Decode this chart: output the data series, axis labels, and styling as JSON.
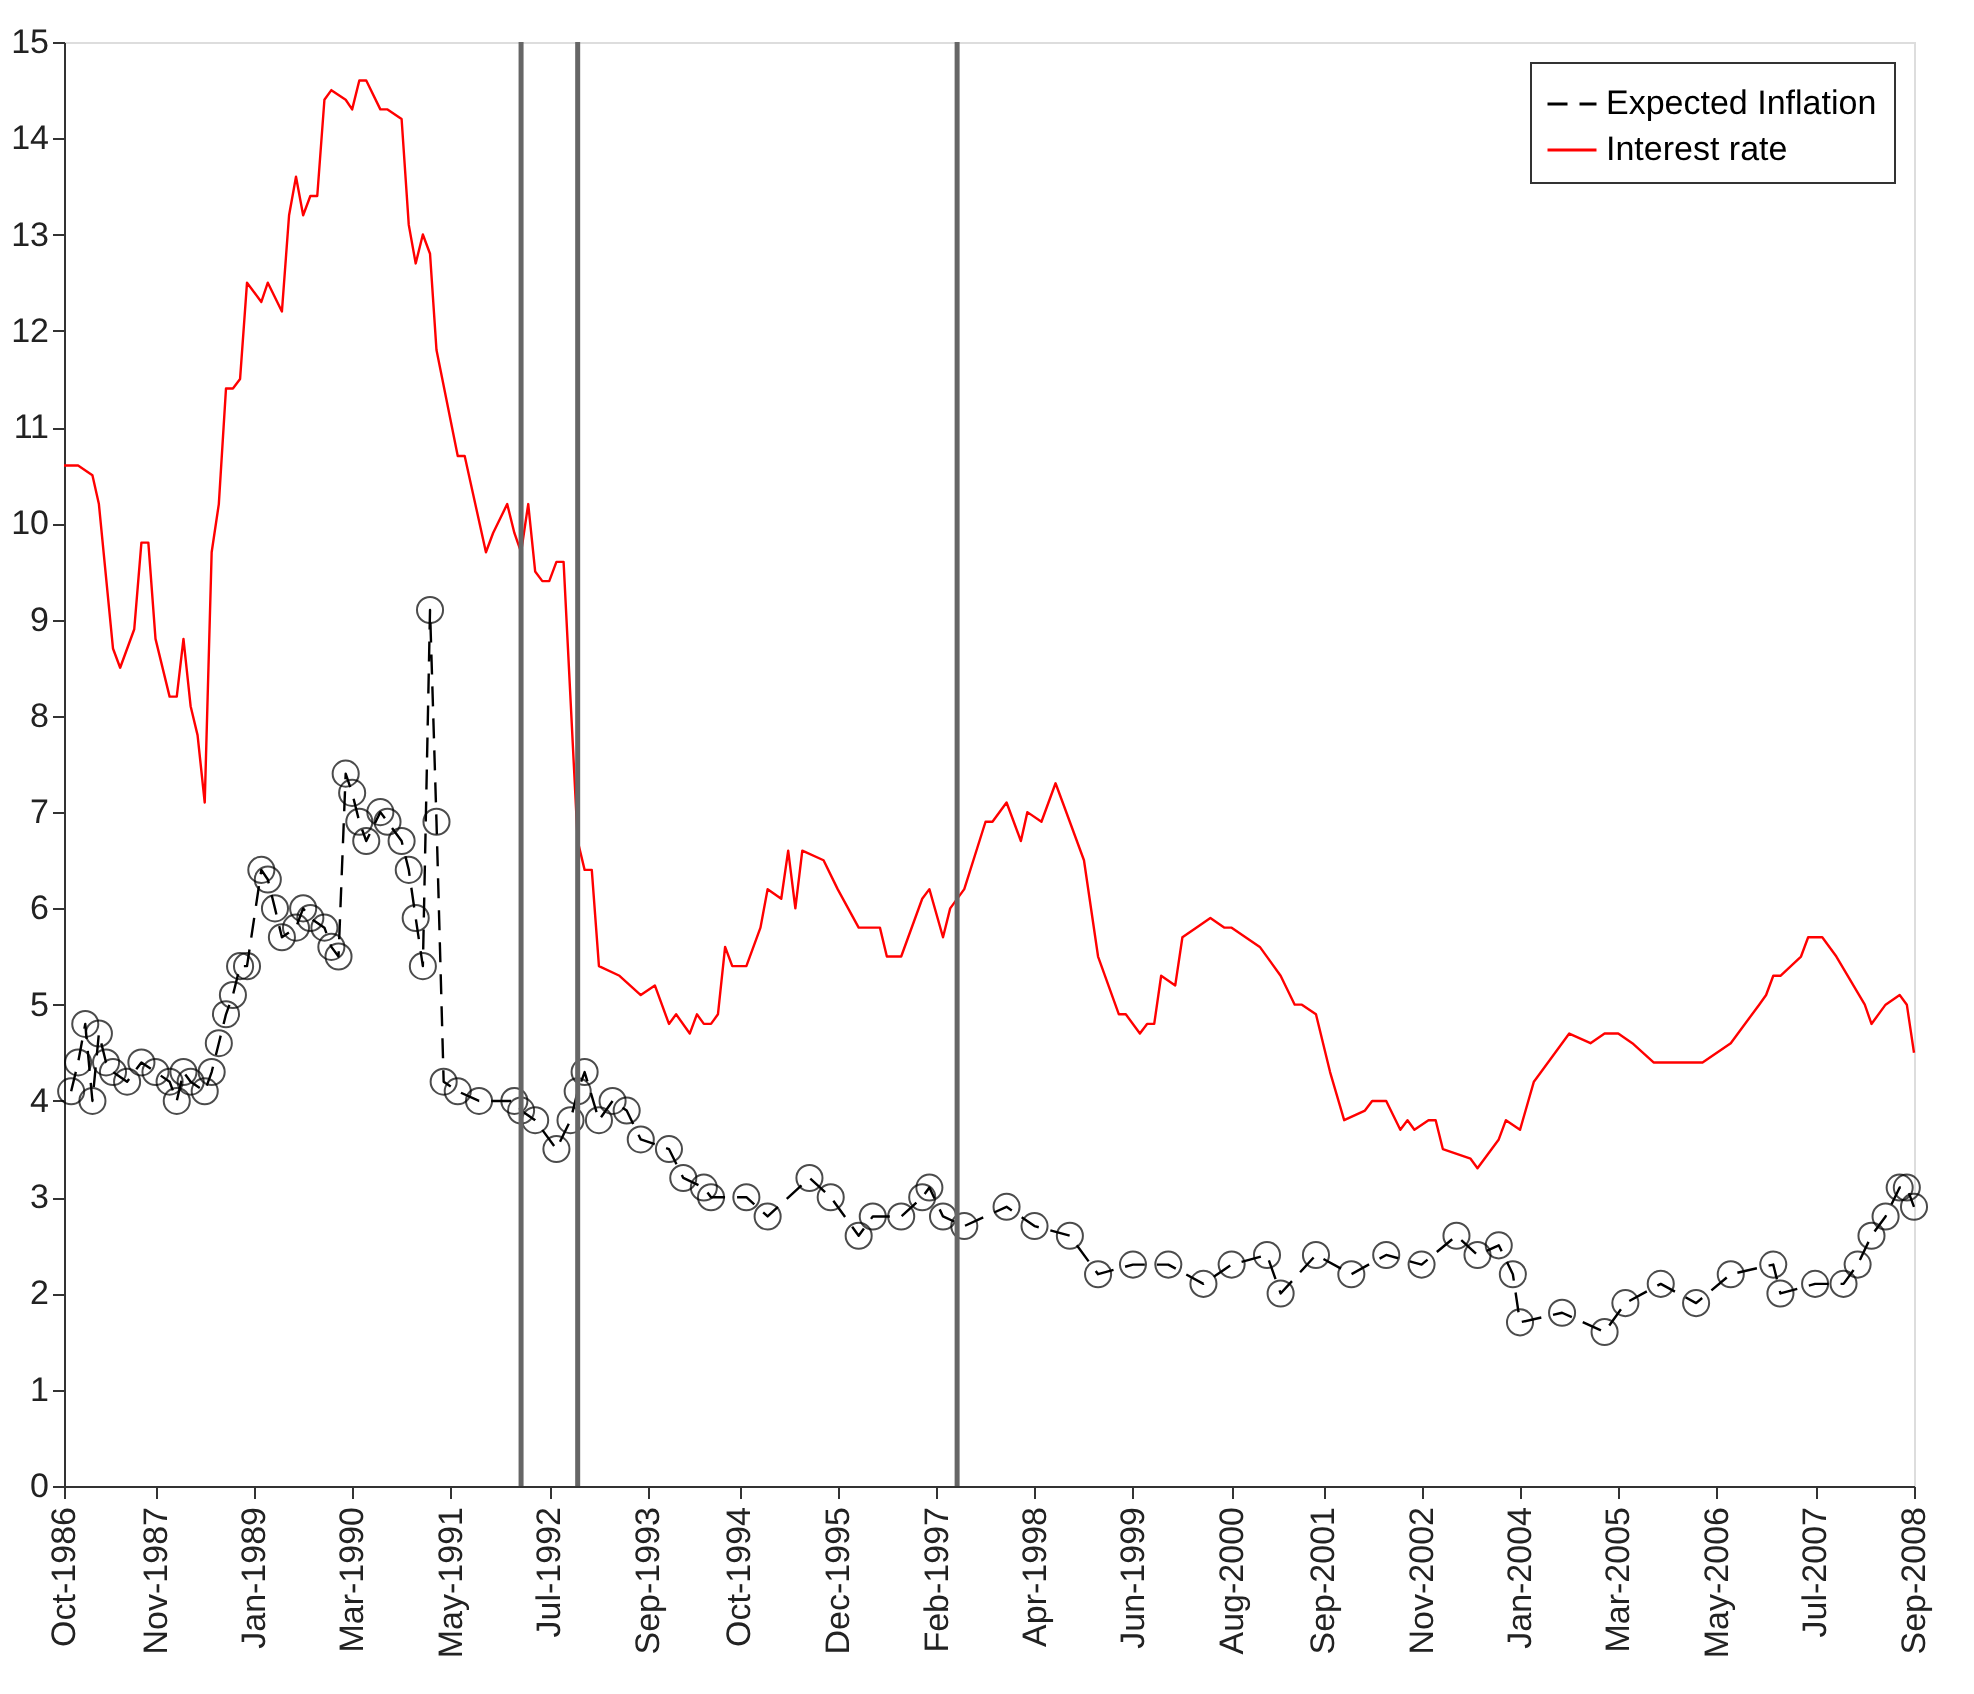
{
  "chart_data": {
    "type": "line",
    "xlim": [
      "1986-10",
      "2008-09"
    ],
    "ylim": [
      0,
      15
    ],
    "yticks": [
      0,
      1,
      2,
      3,
      4,
      5,
      6,
      7,
      8,
      9,
      10,
      11,
      12,
      13,
      14,
      15
    ],
    "xticks": [
      {
        "value": "1986-10",
        "label": "Oct-1986"
      },
      {
        "value": "1987-11",
        "label": "Nov-1987"
      },
      {
        "value": "1989-01",
        "label": "Jan-1989"
      },
      {
        "value": "1990-03",
        "label": "Mar-1990"
      },
      {
        "value": "1991-05",
        "label": "May-1991"
      },
      {
        "value": "1992-07",
        "label": "Jul-1992"
      },
      {
        "value": "1993-09",
        "label": "Sep-1993"
      },
      {
        "value": "1994-10",
        "label": "Oct-1994"
      },
      {
        "value": "1995-12",
        "label": "Dec-1995"
      },
      {
        "value": "1997-02",
        "label": "Feb-1997"
      },
      {
        "value": "1998-04",
        "label": "Apr-1998"
      },
      {
        "value": "1999-06",
        "label": "Jun-1999"
      },
      {
        "value": "2000-08",
        "label": "Aug-2000"
      },
      {
        "value": "2001-09",
        "label": "Sep-2001"
      },
      {
        "value": "2002-11",
        "label": "Nov-2002"
      },
      {
        "value": "2004-01",
        "label": "Jan-2004"
      },
      {
        "value": "2005-03",
        "label": "Mar-2005"
      },
      {
        "value": "2006-05",
        "label": "May-2006"
      },
      {
        "value": "2007-07",
        "label": "Jul-2007"
      },
      {
        "value": "2008-09",
        "label": "Sep-2008"
      }
    ],
    "grid": false,
    "legend": "top right",
    "ref_lines": [
      {
        "axis": "x",
        "value": "1992-03",
        "color": "#666666"
      },
      {
        "axis": "x",
        "value": "1992-11",
        "color": "#666666"
      },
      {
        "axis": "x",
        "value": "1997-05",
        "color": "#666666"
      }
    ],
    "series": [
      {
        "name": "Expected Inflation",
        "color": "#000000",
        "marker": "circle",
        "line_style": "dashed",
        "x": [
          "1986-11",
          "1986-12",
          "1987-01",
          "1987-02",
          "1987-03",
          "1987-04",
          "1987-05",
          "1987-07",
          "1987-09",
          "1987-11",
          "1988-01",
          "1988-02",
          "1988-03",
          "1988-04",
          "1988-06",
          "1988-07",
          "1988-08",
          "1988-09",
          "1988-10",
          "1988-11",
          "1988-12",
          "1989-02",
          "1989-03",
          "1989-04",
          "1989-05",
          "1989-07",
          "1989-08",
          "1989-09",
          "1989-11",
          "1989-12",
          "1990-01",
          "1990-02",
          "1990-03",
          "1990-04",
          "1990-05",
          "1990-07",
          "1990-08",
          "1990-10",
          "1990-11",
          "1990-12",
          "1991-01",
          "1991-02",
          "1991-03",
          "1991-04",
          "1991-06",
          "1991-09",
          "1992-02",
          "1992-03",
          "1992-05",
          "1992-08",
          "1992-10",
          "1992-11",
          "1992-12",
          "1993-02",
          "1993-04",
          "1993-06",
          "1993-08",
          "1993-12",
          "1994-02",
          "1994-05",
          "1994-06",
          "1994-11",
          "1995-02",
          "1995-08",
          "1995-11",
          "1996-03",
          "1996-05",
          "1996-09",
          "1996-12",
          "1997-01",
          "1997-03",
          "1997-06",
          "1997-12",
          "1998-04",
          "1998-09",
          "1999-01",
          "1999-06",
          "1999-11",
          "2000-04",
          "2000-08",
          "2001-01",
          "2001-03",
          "2001-08",
          "2002-01",
          "2002-06",
          "2002-11",
          "2003-04",
          "2003-07",
          "2003-10",
          "2003-12",
          "2004-01",
          "2004-07",
          "2005-01",
          "2005-04",
          "2005-09",
          "2006-02",
          "2006-07",
          "2007-01",
          "2007-02",
          "2007-07",
          "2007-11",
          "2008-01",
          "2008-03",
          "2008-05",
          "2008-07",
          "2008-08",
          "2008-09"
        ],
        "values": [
          4.1,
          4.4,
          4.8,
          4.0,
          4.7,
          4.4,
          4.3,
          4.2,
          4.4,
          4.3,
          4.2,
          4.0,
          4.3,
          4.2,
          4.1,
          4.3,
          4.6,
          4.9,
          5.1,
          5.4,
          5.4,
          6.4,
          6.3,
          6.0,
          5.7,
          5.8,
          6.0,
          5.9,
          5.8,
          5.6,
          5.5,
          7.4,
          7.2,
          6.9,
          6.7,
          7.0,
          6.9,
          6.7,
          6.4,
          5.9,
          5.4,
          9.1,
          6.9,
          4.2,
          4.1,
          4.0,
          4.0,
          3.9,
          3.8,
          3.5,
          3.8,
          4.1,
          4.3,
          3.8,
          4.0,
          3.9,
          3.6,
          3.5,
          3.2,
          3.1,
          3.0,
          3.0,
          2.8,
          3.2,
          3.0,
          2.6,
          2.8,
          2.8,
          3.0,
          3.1,
          2.8,
          2.7,
          2.9,
          2.7,
          2.6,
          2.2,
          2.3,
          2.3,
          2.1,
          2.3,
          2.4,
          2.0,
          2.4,
          2.2,
          2.4,
          2.3,
          2.6,
          2.4,
          2.5,
          2.2,
          1.7,
          1.8,
          1.6,
          1.9,
          2.1,
          1.9,
          2.2,
          2.3,
          2.0,
          2.1,
          2.1,
          2.3,
          2.6,
          2.8,
          3.1,
          3.1,
          2.9
        ]
      },
      {
        "name": "Interest rate",
        "color": "#ff0000",
        "marker": "none",
        "line_style": "solid",
        "x": [
          "1986-10",
          "1986-12",
          "1987-02",
          "1987-03",
          "1987-05",
          "1987-06",
          "1987-08",
          "1987-09",
          "1987-10",
          "1987-11",
          "1988-01",
          "1988-02",
          "1988-03",
          "1988-04",
          "1988-05",
          "1988-06",
          "1988-07",
          "1988-08",
          "1988-09",
          "1988-10",
          "1988-11",
          "1988-12",
          "1989-02",
          "1989-03",
          "1989-05",
          "1989-06",
          "1989-07",
          "1989-08",
          "1989-09",
          "1989-10",
          "1989-11",
          "1989-12",
          "1990-02",
          "1990-03",
          "1990-04",
          "1990-05",
          "1990-07",
          "1990-08",
          "1990-10",
          "1990-11",
          "1990-12",
          "1991-01",
          "1991-02",
          "1991-03",
          "1991-06",
          "1991-07",
          "1991-10",
          "1991-11",
          "1992-01",
          "1992-02",
          "1992-03",
          "1992-04",
          "1992-05",
          "1992-06",
          "1992-07",
          "1992-08",
          "1992-09",
          "1992-11",
          "1992-12",
          "1993-01",
          "1993-02",
          "1993-05",
          "1993-08",
          "1993-10",
          "1993-12",
          "1994-01",
          "1994-03",
          "1994-04",
          "1994-05",
          "1994-06",
          "1994-07",
          "1994-08",
          "1994-09",
          "1994-11",
          "1995-01",
          "1995-02",
          "1995-04",
          "1995-05",
          "1995-06",
          "1995-07",
          "1995-10",
          "1995-12",
          "1996-03",
          "1996-06",
          "1996-07",
          "1996-09",
          "1996-12",
          "1997-01",
          "1997-03",
          "1997-04",
          "1997-06",
          "1997-09",
          "1997-10",
          "1997-12",
          "1998-02",
          "1998-03",
          "1998-05",
          "1998-07",
          "1998-08",
          "1998-11",
          "1999-01",
          "1999-04",
          "1999-05",
          "1999-07",
          "1999-08",
          "1999-09",
          "1999-10",
          "1999-12",
          "2000-01",
          "2000-03",
          "2000-05",
          "2000-07",
          "2000-08",
          "2000-12",
          "2001-03",
          "2001-05",
          "2001-06",
          "2001-08",
          "2001-10",
          "2001-12",
          "2002-03",
          "2002-04",
          "2002-06",
          "2002-08",
          "2002-09",
          "2002-10",
          "2002-12",
          "2003-01",
          "2003-02",
          "2003-06",
          "2003-07",
          "2003-10",
          "2003-11",
          "2004-01",
          "2004-03",
          "2004-04",
          "2004-08",
          "2004-11",
          "2005-01",
          "2005-03",
          "2005-05",
          "2005-08",
          "2005-11",
          "2006-03",
          "2006-07",
          "2006-08",
          "2006-11",
          "2006-12",
          "2007-01",
          "2007-02",
          "2007-05",
          "2007-06",
          "2007-08",
          "2007-10",
          "2008-02",
          "2008-03",
          "2008-05",
          "2008-07",
          "2008-08",
          "2008-09"
        ],
        "values": [
          10.6,
          10.6,
          10.5,
          10.2,
          8.7,
          8.5,
          8.9,
          9.8,
          9.8,
          8.8,
          8.2,
          8.2,
          8.8,
          8.1,
          7.8,
          7.1,
          9.7,
          10.2,
          11.4,
          11.4,
          11.5,
          12.5,
          12.3,
          12.5,
          12.2,
          13.2,
          13.6,
          13.2,
          13.4,
          13.4,
          14.4,
          14.5,
          14.4,
          14.3,
          14.6,
          14.6,
          14.3,
          14.3,
          14.2,
          13.1,
          12.7,
          13.0,
          12.8,
          11.8,
          10.7,
          10.7,
          9.7,
          9.9,
          10.2,
          9.9,
          9.7,
          10.2,
          9.5,
          9.4,
          9.4,
          9.6,
          9.6,
          6.7,
          6.4,
          6.4,
          5.4,
          5.3,
          5.1,
          5.2,
          4.8,
          4.9,
          4.7,
          4.9,
          4.8,
          4.8,
          4.9,
          5.6,
          5.4,
          5.4,
          5.8,
          6.2,
          6.1,
          6.6,
          6.0,
          6.6,
          6.5,
          6.2,
          5.8,
          5.8,
          5.5,
          5.5,
          6.1,
          6.2,
          5.7,
          6.0,
          6.2,
          6.9,
          6.9,
          7.1,
          6.7,
          7.0,
          6.9,
          7.3,
          7.1,
          6.5,
          5.5,
          4.9,
          4.9,
          4.7,
          4.8,
          4.8,
          5.3,
          5.2,
          5.7,
          5.8,
          5.9,
          5.8,
          5.8,
          5.6,
          5.3,
          5.0,
          5.0,
          4.9,
          4.3,
          3.8,
          3.9,
          4.0,
          4.0,
          3.7,
          3.8,
          3.7,
          3.8,
          3.8,
          3.5,
          3.4,
          3.3,
          3.6,
          3.8,
          3.7,
          4.2,
          4.3,
          4.7,
          4.6,
          4.7,
          4.7,
          4.6,
          4.4,
          4.4,
          4.4,
          4.6,
          4.7,
          5.0,
          5.1,
          5.3,
          5.3,
          5.5,
          5.7,
          5.7,
          5.5,
          5.0,
          4.8,
          5.0,
          5.1,
          5.0,
          4.5
        ]
      }
    ]
  }
}
